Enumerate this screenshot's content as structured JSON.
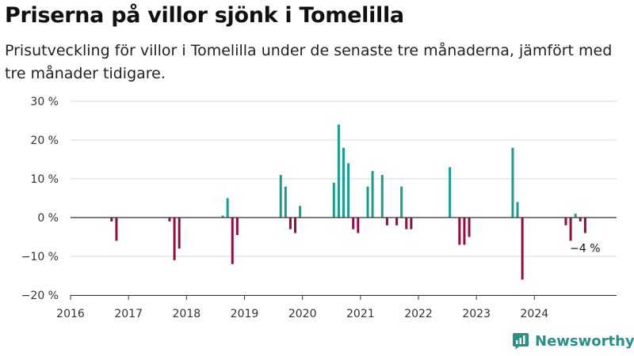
{
  "header": {
    "title": "Priserna på villor sjönk i Tomelilla",
    "subtitle": "Prisutveckling för villor i Tomelilla under de senaste tre månaderna, jämfört med tre månader tidigare."
  },
  "brand": {
    "name": "Newsworthy",
    "color": "#2a8f86"
  },
  "colors": {
    "positive": "#1a9c8f",
    "negative": "#930d45",
    "grid": "#d9d9d9",
    "axis": "#333333"
  },
  "chart_data": {
    "type": "bar",
    "xlim": [
      "2016-01",
      "2025-06"
    ],
    "ylim": [
      -20,
      30
    ],
    "yticks": [
      -20,
      -10,
      0,
      10,
      20,
      30
    ],
    "ytick_labels": [
      "−20 %",
      "−10 %",
      "0 %",
      "10 %",
      "20 %",
      "30 %"
    ],
    "xtick_labels": [
      "2016",
      "2017",
      "2018",
      "2019",
      "2020",
      "2021",
      "2022",
      "2023",
      "2024"
    ],
    "grid": true,
    "annotation": {
      "text": "−4 %",
      "x": "2024-11"
    },
    "points": [
      {
        "x": "2016-09",
        "y": -1
      },
      {
        "x": "2016-10",
        "y": -6
      },
      {
        "x": "2017-09",
        "y": -1
      },
      {
        "x": "2017-10",
        "y": -11
      },
      {
        "x": "2017-11",
        "y": -8
      },
      {
        "x": "2018-08",
        "y": 0.5
      },
      {
        "x": "2018-09",
        "y": 5
      },
      {
        "x": "2018-10",
        "y": -12
      },
      {
        "x": "2018-11",
        "y": -4.5
      },
      {
        "x": "2019-08",
        "y": 11
      },
      {
        "x": "2019-09",
        "y": 8
      },
      {
        "x": "2019-10",
        "y": -3
      },
      {
        "x": "2019-11",
        "y": -4
      },
      {
        "x": "2019-12",
        "y": 3
      },
      {
        "x": "2020-07",
        "y": 9
      },
      {
        "x": "2020-08",
        "y": 24
      },
      {
        "x": "2020-09",
        "y": 18
      },
      {
        "x": "2020-10",
        "y": 14
      },
      {
        "x": "2020-11",
        "y": -3
      },
      {
        "x": "2020-12",
        "y": -4
      },
      {
        "x": "2021-02",
        "y": 8
      },
      {
        "x": "2021-03",
        "y": 12
      },
      {
        "x": "2021-05",
        "y": 11
      },
      {
        "x": "2021-06",
        "y": -2
      },
      {
        "x": "2021-08",
        "y": -2
      },
      {
        "x": "2021-09",
        "y": 8
      },
      {
        "x": "2021-10",
        "y": -3
      },
      {
        "x": "2021-11",
        "y": -3
      },
      {
        "x": "2022-07",
        "y": 13
      },
      {
        "x": "2022-09",
        "y": -7
      },
      {
        "x": "2022-10",
        "y": -7
      },
      {
        "x": "2022-11",
        "y": -5
      },
      {
        "x": "2023-08",
        "y": 18
      },
      {
        "x": "2023-09",
        "y": 4
      },
      {
        "x": "2023-10",
        "y": -16
      },
      {
        "x": "2024-07",
        "y": -2
      },
      {
        "x": "2024-08",
        "y": -6
      },
      {
        "x": "2024-09",
        "y": 1
      },
      {
        "x": "2024-10",
        "y": -1
      },
      {
        "x": "2024-11",
        "y": -4
      }
    ]
  }
}
